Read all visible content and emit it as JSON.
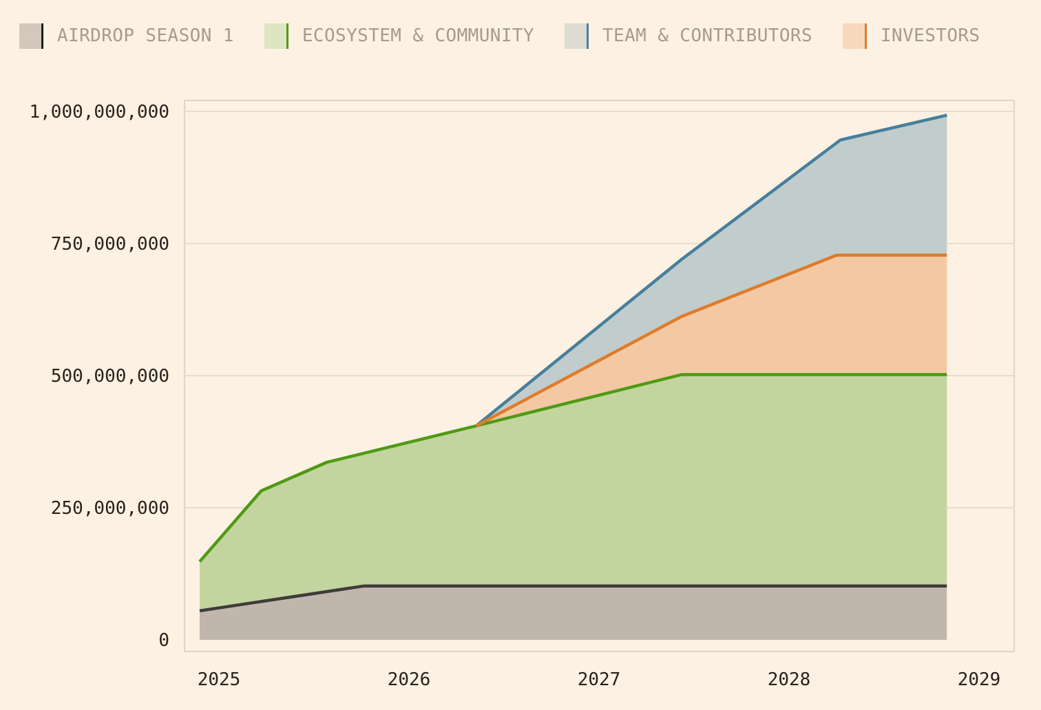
{
  "chart_data": {
    "type": "area",
    "stacked": true,
    "title": "",
    "xlabel": "",
    "ylabel": "",
    "xlim": [
      2024.92,
      2029.0
    ],
    "ylim": [
      0,
      1000000000
    ],
    "grid": true,
    "legend_position": "top",
    "x_ticks": [
      2025,
      2026,
      2027,
      2028,
      2029
    ],
    "x_tick_labels": [
      "2025",
      "2026",
      "2027",
      "2028",
      "2029"
    ],
    "y_ticks": [
      0,
      250000000,
      500000000,
      750000000,
      1000000000
    ],
    "y_tick_labels": [
      "0",
      "250,000,000",
      "500,000,000",
      "750,000,000",
      "1,000,000,000"
    ],
    "series": [
      {
        "name": "AIRDROP SEASON 1",
        "line_color": "#3e3c39",
        "fill_color": "#c1b6ac",
        "swatch_color": "#d4c8bc",
        "points": [
          [
            2024.92,
            55000000
          ],
          [
            2025.8,
            102000000
          ],
          [
            2028.92,
            102000000
          ]
        ]
      },
      {
        "name": "ECOSYSTEM & COMMUNITY",
        "line_color": "#4e9a14",
        "fill_color": "#c3d59e",
        "swatch_color": "#dde5c3",
        "points": [
          [
            2024.92,
            148000000
          ],
          [
            2025.25,
            282000000
          ],
          [
            2025.6,
            336000000
          ],
          [
            2026.4,
            405000000
          ],
          [
            2027.5,
            502000000
          ],
          [
            2028.92,
            502000000
          ]
        ]
      },
      {
        "name": "INVESTORS",
        "line_color": "#e07b2a",
        "fill_color": "#f3c9a4",
        "swatch_color": "#f6d8bd",
        "points": [
          [
            2026.4,
            405000000
          ],
          [
            2027.5,
            612000000
          ],
          [
            2028.33,
            728000000
          ],
          [
            2028.92,
            728000000
          ]
        ]
      },
      {
        "name": "TEAM & CONTRIBUTORS",
        "line_color": "#467f9c",
        "fill_color": "#c1cdcc",
        "swatch_color": "#dcdcd2",
        "points": [
          [
            2026.4,
            405000000
          ],
          [
            2027.5,
            720000000
          ],
          [
            2028.35,
            946000000
          ],
          [
            2028.92,
            993000000
          ]
        ]
      }
    ]
  },
  "legend": {
    "items": [
      {
        "label": "AIRDROP SEASON 1",
        "swatch": "#d4c8bc",
        "bar": "#1d1a18"
      },
      {
        "label": "ECOSYSTEM & COMMUNITY",
        "swatch": "#dde5c3",
        "bar": "#4e9a14"
      },
      {
        "label": "TEAM & CONTRIBUTORS",
        "swatch": "#dcdcd2",
        "bar": "#467f9c"
      },
      {
        "label": "INVESTORS",
        "swatch": "#f6d8bd",
        "bar": "#e07b2a"
      }
    ]
  },
  "theme": {
    "background": "#fcf1e2",
    "grid_color": "#e9dccc",
    "frame_color": "#e2d4c2",
    "tick_text_color": "#2a211c"
  }
}
